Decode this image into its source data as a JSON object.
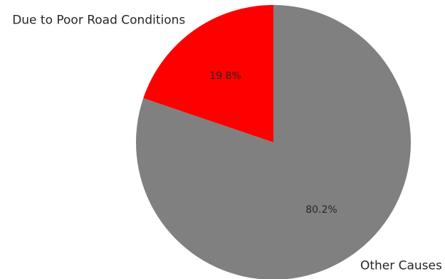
{
  "chart_data": {
    "type": "pie",
    "start_angle_deg": 90,
    "direction": "counterclockwise",
    "slices": [
      {
        "label": "Due to Poor Road Conditions",
        "value": 19.8,
        "pct_label": "19.8%",
        "color": "#ff0000"
      },
      {
        "label": "Other Causes",
        "value": 80.2,
        "pct_label": "80.2%",
        "color": "#808080"
      }
    ]
  }
}
